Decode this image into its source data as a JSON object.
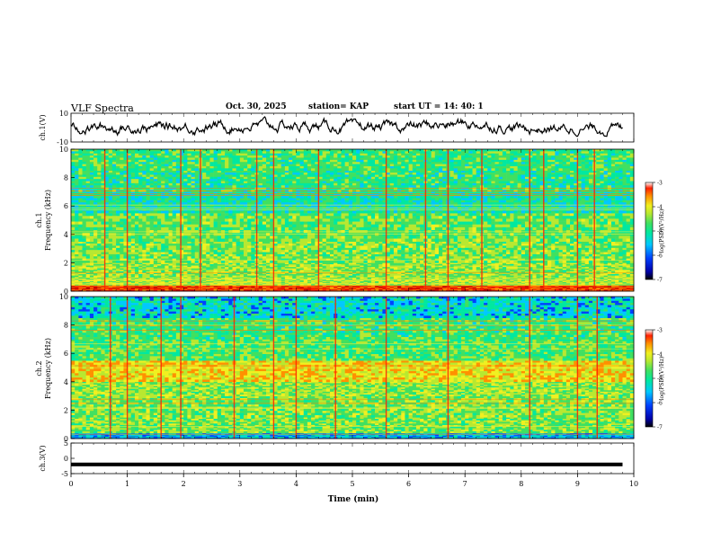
{
  "header": {
    "title": "VLF Spectra",
    "date": "Oct. 30, 2025",
    "station": "station= KAP",
    "start_ut": "start  UT =   14: 40: 1"
  },
  "colors": {
    "colormap": [
      "#0000a8",
      "#0040ff",
      "#00c8ff",
      "#00e8a0",
      "#40e060",
      "#b8e830",
      "#f0f020",
      "#ff9000",
      "#ff2000",
      "#c00000"
    ],
    "trace": "#000000",
    "axis": "#000000"
  },
  "chart_data": [
    {
      "id": "ch1-waveform",
      "type": "line",
      "ylabel": "ch.1(V)",
      "ylim": [
        -10,
        10
      ],
      "yticks": [
        "10",
        "-10"
      ],
      "xlim": [
        0,
        10
      ],
      "description_of_values": "noisy oscillating voltage trace around ~0 V, amplitude mostly within +/-6 V",
      "approx_envelope": [
        {
          "t": 0.0,
          "lo": -4,
          "hi": 3
        },
        {
          "t": 1.0,
          "lo": -6,
          "hi": 6
        },
        {
          "t": 2.0,
          "lo": -6,
          "hi": 7
        },
        {
          "t": 3.0,
          "lo": -5,
          "hi": 8
        },
        {
          "t": 4.0,
          "lo": -6,
          "hi": 8
        },
        {
          "t": 5.0,
          "lo": -6,
          "hi": 6
        },
        {
          "t": 6.0,
          "lo": -4,
          "hi": 5
        },
        {
          "t": 7.0,
          "lo": -3,
          "hi": 9
        },
        {
          "t": 8.0,
          "lo": -5,
          "hi": 3
        },
        {
          "t": 9.0,
          "lo": -6,
          "hi": 4
        },
        {
          "t": 9.8,
          "lo": -6,
          "hi": 5
        }
      ]
    },
    {
      "id": "ch1-spectrogram",
      "type": "heatmap",
      "ylabel": "ch.1\nFrequency (kHz)",
      "ylim": [
        0,
        10
      ],
      "yticks": [
        "0",
        "2",
        "4",
        "6",
        "8",
        "10"
      ],
      "xlim": [
        0,
        10
      ],
      "colorbar": {
        "label": "log(PSD)(V²/Hz)",
        "range": [
          -7,
          -3
        ],
        "ticks": [
          "-3",
          "-4",
          "-5",
          "-6",
          "-7"
        ]
      },
      "band_levels": [
        {
          "f_lo": 0.0,
          "f_hi": 0.4,
          "level": -3.6
        },
        {
          "f_lo": 0.4,
          "f_hi": 1.0,
          "level": -4.8
        },
        {
          "f_lo": 1.0,
          "f_hi": 2.0,
          "level": -4.9
        },
        {
          "f_lo": 2.0,
          "f_hi": 3.5,
          "level": -5.0
        },
        {
          "f_lo": 3.5,
          "f_hi": 5.5,
          "level": -5.1
        },
        {
          "f_lo": 5.5,
          "f_hi": 7.0,
          "level": -5.6
        },
        {
          "f_lo": 7.0,
          "f_hi": 8.5,
          "level": -5.4
        },
        {
          "f_lo": 8.5,
          "f_hi": 10.0,
          "level": -5.3
        }
      ],
      "impulsive_events_min": [
        0.6,
        1.0,
        1.95,
        2.3,
        3.3,
        3.6,
        4.4,
        5.6,
        6.3,
        6.7,
        7.3,
        8.15,
        8.4,
        9.0,
        9.3
      ]
    },
    {
      "id": "ch2-spectrogram",
      "type": "heatmap",
      "ylabel": "ch.2\nFrequency (kHz)",
      "ylim": [
        0,
        10
      ],
      "yticks": [
        "0",
        "2",
        "4",
        "6",
        "8",
        "10"
      ],
      "xlim": [
        0,
        10
      ],
      "colorbar": {
        "label": "log(PSD)(V²/Hz)",
        "range": [
          -7,
          -3
        ],
        "ticks": [
          "-3",
          "-4",
          "-5",
          "-6",
          "-7"
        ]
      },
      "band_levels": [
        {
          "f_lo": 0.0,
          "f_hi": 0.4,
          "level": -6.0
        },
        {
          "f_lo": 0.4,
          "f_hi": 1.5,
          "level": -5.0
        },
        {
          "f_lo": 1.5,
          "f_hi": 3.0,
          "level": -5.0
        },
        {
          "f_lo": 3.0,
          "f_hi": 4.0,
          "level": -4.9
        },
        {
          "f_lo": 4.0,
          "f_hi": 5.5,
          "level": -4.4
        },
        {
          "f_lo": 5.5,
          "f_hi": 7.0,
          "level": -5.2
        },
        {
          "f_lo": 7.0,
          "f_hi": 8.5,
          "level": -5.3
        },
        {
          "f_lo": 8.5,
          "f_hi": 10.0,
          "level": -5.8
        }
      ],
      "impulsive_events_min": [
        0.7,
        1.0,
        1.6,
        1.95,
        2.9,
        3.6,
        4.0,
        4.7,
        5.6,
        6.7,
        8.15,
        9.0,
        9.35
      ]
    },
    {
      "id": "ch3-waveform",
      "type": "line",
      "ylabel": "ch.3(V)",
      "ylim": [
        -5,
        5
      ],
      "yticks": [
        "5",
        "0",
        "-5"
      ],
      "xlim": [
        0,
        10
      ],
      "xlabel": "Time (min)",
      "xticks": [
        "0",
        "1",
        "2",
        "3",
        "4",
        "5",
        "6",
        "7",
        "8",
        "9",
        "10"
      ],
      "description_of_values": "dense oscillation around ~-2 V with small amplitude (about -2.6 to -1.4 V)",
      "center": -2.0,
      "amplitude": 0.6
    }
  ]
}
